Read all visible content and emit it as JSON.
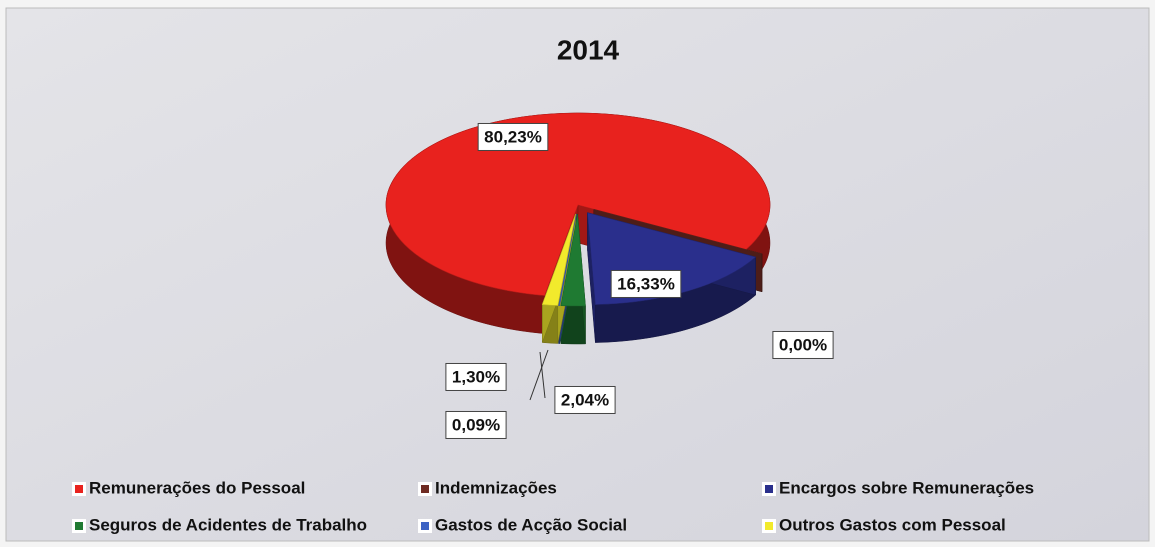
{
  "chart_data": {
    "type": "pie",
    "title": "2014",
    "categories": [
      "Remunerações do Pessoal",
      "Indemnizações",
      "Encargos sobre Remunerações",
      "Seguros de Acidentes de Trabalho",
      "Gastos de Acção Social",
      "Outros Gastos com Pessoal"
    ],
    "values": [
      80.23,
      0.0,
      16.33,
      2.04,
      0.09,
      1.3
    ],
    "value_labels": [
      "80,23%",
      "0,00%",
      "16,33%",
      "2,04%",
      "0,09%",
      "1,30%"
    ],
    "colors": [
      "#e8221e",
      "#6e2a22",
      "#2a2f8c",
      "#1f7a32",
      "#3d63c4",
      "#f2ea2c"
    ]
  }
}
